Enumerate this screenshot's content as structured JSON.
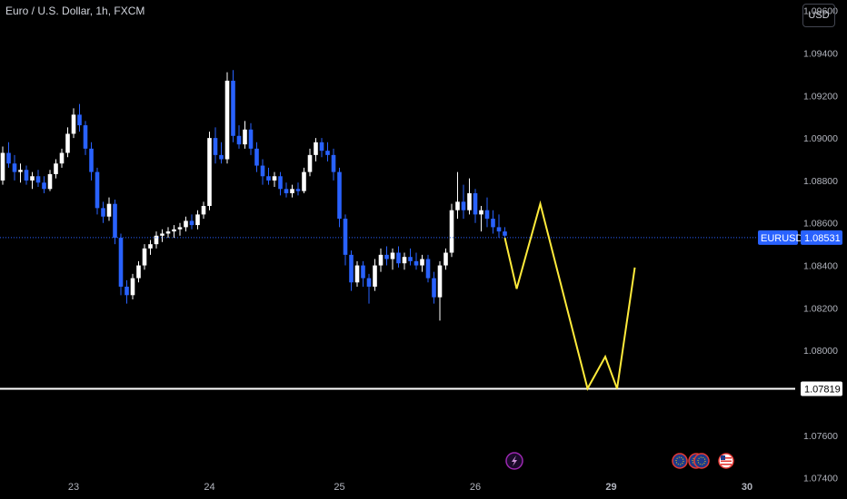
{
  "header": {
    "title": "Euro / U.S. Dollar, 1h, FXCM",
    "currency_button": "USD"
  },
  "colors": {
    "up": "#ffffff",
    "down": "#2962ff",
    "forecast": "#ffeb3b",
    "level": "#ffffff",
    "badge": "#2962ff"
  },
  "chart_data": {
    "type": "candlestick",
    "ylim": [
      1.073,
      1.0965
    ],
    "yticks": [
      "1.09600",
      "1.09400",
      "1.09200",
      "1.09000",
      "1.08800",
      "1.08600",
      "1.08400",
      "1.08200",
      "1.08000",
      "1.07600",
      "1.07400"
    ],
    "xticks": [
      {
        "label": "23",
        "index": 12
      },
      {
        "label": "24",
        "index": 35
      },
      {
        "label": "25",
        "index": 57
      },
      {
        "label": "26",
        "index": 80
      },
      {
        "label": "29",
        "index": 103
      },
      {
        "label": "30",
        "index": 126
      }
    ],
    "candles": [
      [
        1.088,
        1.0896,
        1.0878,
        1.0893
      ],
      [
        1.0893,
        1.0898,
        1.0886,
        1.0888
      ],
      [
        1.0888,
        1.0892,
        1.088,
        1.0884
      ],
      [
        1.0884,
        1.0888,
        1.0879,
        1.0885
      ],
      [
        1.0885,
        1.0887,
        1.0878,
        1.088
      ],
      [
        1.088,
        1.0884,
        1.0876,
        1.0882
      ],
      [
        1.0882,
        1.0885,
        1.0877,
        1.0879
      ],
      [
        1.0879,
        1.0882,
        1.0874,
        1.0876
      ],
      [
        1.0876,
        1.0885,
        1.0875,
        1.0883
      ],
      [
        1.0883,
        1.089,
        1.0881,
        1.0888
      ],
      [
        1.0888,
        1.0895,
        1.0886,
        1.0893
      ],
      [
        1.0893,
        1.0905,
        1.0891,
        1.0902
      ],
      [
        1.0902,
        1.0914,
        1.09,
        1.0911
      ],
      [
        1.0911,
        1.0916,
        1.0903,
        1.0906
      ],
      [
        1.0906,
        1.0908,
        1.0892,
        1.0895
      ],
      [
        1.0895,
        1.0898,
        1.088,
        1.0884
      ],
      [
        1.0884,
        1.0886,
        1.0864,
        1.0867
      ],
      [
        1.0867,
        1.087,
        1.086,
        1.0863
      ],
      [
        1.0863,
        1.0872,
        1.0861,
        1.0869
      ],
      [
        1.0869,
        1.0871,
        1.085,
        1.0853
      ],
      [
        1.0853,
        1.0855,
        1.0826,
        1.083
      ],
      [
        1.083,
        1.0833,
        1.0822,
        1.0826
      ],
      [
        1.0826,
        1.0836,
        1.0824,
        1.0834
      ],
      [
        1.0834,
        1.0842,
        1.0832,
        1.084
      ],
      [
        1.084,
        1.085,
        1.0838,
        1.0848
      ],
      [
        1.0848,
        1.0852,
        1.0845,
        1.085
      ],
      [
        1.085,
        1.0856,
        1.0848,
        1.0854
      ],
      [
        1.0854,
        1.0857,
        1.0851,
        1.0855
      ],
      [
        1.0855,
        1.0858,
        1.0853,
        1.0856
      ],
      [
        1.0856,
        1.0859,
        1.0853,
        1.0857
      ],
      [
        1.0857,
        1.086,
        1.0854,
        1.0858
      ],
      [
        1.0858,
        1.0863,
        1.0856,
        1.0861
      ],
      [
        1.0861,
        1.0864,
        1.0857,
        1.0859
      ],
      [
        1.0859,
        1.0866,
        1.0857,
        1.0864
      ],
      [
        1.0864,
        1.087,
        1.0862,
        1.0868
      ],
      [
        1.0868,
        1.0903,
        1.0866,
        1.09
      ],
      [
        1.09,
        1.0905,
        1.0888,
        1.0892
      ],
      [
        1.0892,
        1.0898,
        1.0888,
        1.089
      ],
      [
        1.089,
        1.0931,
        1.0888,
        1.0927
      ],
      [
        1.0927,
        1.0932,
        1.0898,
        1.0901
      ],
      [
        1.0901,
        1.0906,
        1.0895,
        1.0897
      ],
      [
        1.0897,
        1.0908,
        1.0895,
        1.0904
      ],
      [
        1.0904,
        1.0907,
        1.0892,
        1.0895
      ],
      [
        1.0895,
        1.0898,
        1.0884,
        1.0887
      ],
      [
        1.0887,
        1.089,
        1.0878,
        1.0882
      ],
      [
        1.0882,
        1.0886,
        1.0878,
        1.088
      ],
      [
        1.088,
        1.0884,
        1.0877,
        1.0882
      ],
      [
        1.0882,
        1.0884,
        1.0873,
        1.0876
      ],
      [
        1.0876,
        1.0879,
        1.0872,
        1.0874
      ],
      [
        1.0874,
        1.0878,
        1.0872,
        1.0876
      ],
      [
        1.0876,
        1.0879,
        1.0873,
        1.0875
      ],
      [
        1.0875,
        1.0886,
        1.0874,
        1.0884
      ],
      [
        1.0884,
        1.0895,
        1.0882,
        1.0892
      ],
      [
        1.0892,
        1.09,
        1.0889,
        1.0898
      ],
      [
        1.0898,
        1.09,
        1.0891,
        1.0894
      ],
      [
        1.0894,
        1.0898,
        1.0889,
        1.0892
      ],
      [
        1.0892,
        1.0895,
        1.088,
        1.0884
      ],
      [
        1.0884,
        1.0886,
        1.0858,
        1.0862
      ],
      [
        1.0862,
        1.0864,
        1.084,
        1.0845
      ],
      [
        1.0845,
        1.0847,
        1.0828,
        1.0832
      ],
      [
        1.0832,
        1.0842,
        1.083,
        1.084
      ],
      [
        1.084,
        1.0842,
        1.083,
        1.0834
      ],
      [
        1.0834,
        1.0836,
        1.0822,
        1.083
      ],
      [
        1.083,
        1.0843,
        1.0828,
        1.084
      ],
      [
        1.084,
        1.0848,
        1.0837,
        1.0845
      ],
      [
        1.0845,
        1.0849,
        1.084,
        1.0843
      ],
      [
        1.0843,
        1.0848,
        1.0838,
        1.0846
      ],
      [
        1.0846,
        1.0849,
        1.0839,
        1.0841
      ],
      [
        1.0841,
        1.0846,
        1.0838,
        1.0844
      ],
      [
        1.0844,
        1.0848,
        1.084,
        1.0842
      ],
      [
        1.0842,
        1.0846,
        1.0838,
        1.084
      ],
      [
        1.084,
        1.0845,
        1.0837,
        1.0843
      ],
      [
        1.0843,
        1.0845,
        1.0832,
        1.0834
      ],
      [
        1.0834,
        1.0837,
        1.0822,
        1.0825
      ],
      [
        1.0825,
        1.0842,
        1.0814,
        1.084
      ],
      [
        1.084,
        1.0848,
        1.0838,
        1.0846
      ],
      [
        1.0846,
        1.0869,
        1.0844,
        1.0866
      ],
      [
        1.0866,
        1.0884,
        1.0862,
        1.087
      ],
      [
        1.087,
        1.0878,
        1.0862,
        1.0866
      ],
      [
        1.0866,
        1.0881,
        1.0864,
        1.0874
      ],
      [
        1.0874,
        1.0876,
        1.086,
        1.0864
      ],
      [
        1.0864,
        1.0868,
        1.0856,
        1.0866
      ],
      [
        1.0866,
        1.0872,
        1.0858,
        1.0862
      ],
      [
        1.0862,
        1.0866,
        1.0855,
        1.0858
      ],
      [
        1.0858,
        1.0864,
        1.0853,
        1.0856
      ],
      [
        1.0856,
        1.0858,
        1.0852,
        1.0854
      ]
    ],
    "forecast_path": [
      {
        "index": 85,
        "value": 1.0853
      },
      {
        "index": 87,
        "value": 1.0829
      },
      {
        "index": 91,
        "value": 1.0869
      },
      {
        "index": 99,
        "value": 1.0782
      },
      {
        "index": 102,
        "value": 1.0797
      },
      {
        "index": 104,
        "value": 1.0782
      },
      {
        "index": 107,
        "value": 1.0839
      }
    ],
    "horizontal_level": {
      "value": 1.07819,
      "label": "1.07819"
    },
    "last_price": {
      "value": 1.08531,
      "symbol": "EURUSD",
      "label": "1.08531"
    }
  }
}
